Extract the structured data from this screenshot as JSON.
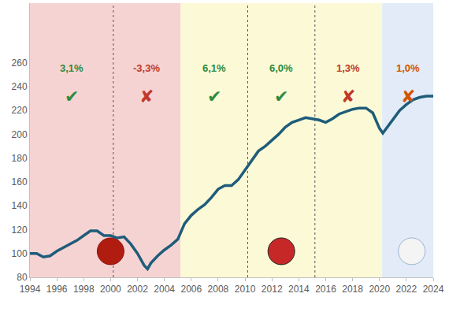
{
  "chart_data": {
    "type": "line",
    "x": [
      1994,
      1994.5,
      1995,
      1995.5,
      1996,
      1996.5,
      1997,
      1997.5,
      1998,
      1998.5,
      1999,
      1999.5,
      2000,
      2000.5,
      2001,
      2001.5,
      2002,
      2002.5,
      2002.75,
      2003,
      2003.5,
      2004,
      2004.5,
      2005,
      2005.5,
      2006,
      2006.5,
      2007,
      2007.5,
      2008,
      2008.5,
      2009,
      2009.5,
      2010,
      2010.5,
      2011,
      2011.5,
      2012,
      2012.5,
      2013,
      2013.5,
      2014,
      2014.5,
      2015,
      2015.5,
      2016,
      2016.5,
      2017,
      2017.5,
      2018,
      2018.5,
      2019,
      2019.5,
      2020,
      2020.25,
      2020.5,
      2021,
      2021.5,
      2022,
      2022.5,
      2023,
      2023.5,
      2024
    ],
    "values": [
      100,
      100,
      97,
      98,
      102,
      105,
      108,
      111,
      115,
      119,
      119,
      115,
      115,
      113,
      114,
      108,
      100,
      90,
      87,
      92,
      98,
      103,
      107,
      112,
      125,
      132,
      137,
      141,
      147,
      154,
      157,
      157,
      162,
      170,
      178,
      186,
      190,
      195,
      200,
      206,
      210,
      212,
      214,
      213,
      212,
      210,
      213,
      217,
      219,
      221,
      222,
      222,
      218,
      205,
      201,
      205,
      212,
      220,
      225,
      229,
      231,
      232,
      232
    ],
    "color": "#1f5c7a",
    "xlim": [
      1994,
      2024
    ],
    "xticks": [
      1994,
      1996,
      1998,
      2000,
      2002,
      2004,
      2006,
      2008,
      2010,
      2012,
      2014,
      2016,
      2018,
      2020,
      2022,
      2024
    ],
    "ylim": [
      80,
      310
    ],
    "yticks": [
      80,
      100,
      120,
      140,
      160,
      180,
      200,
      220,
      240,
      260
    ],
    "grid": false,
    "terms": [
      {
        "start": 1994,
        "end": 2000.2,
        "color": "#f6d3d3",
        "label": "3,1%",
        "growth": 3.1,
        "verdict": "✔",
        "label_color": "#2e8b3e"
      },
      {
        "start": 2000.2,
        "end": 2005.2,
        "color": "#f6d3d3",
        "label": "-3,3%",
        "growth": -3.3,
        "verdict": "✘",
        "label_color": "#c0392b"
      },
      {
        "start": 2005.2,
        "end": 2010.2,
        "color": "#fcfad6",
        "label": "6,1%",
        "growth": 6.1,
        "verdict": "✔",
        "label_color": "#2e8b3e"
      },
      {
        "start": 2010.2,
        "end": 2015.2,
        "color": "#fcfad6",
        "label": "6,0%",
        "growth": 6.0,
        "verdict": "✔",
        "label_color": "#2e8b3e"
      },
      {
        "start": 2015.2,
        "end": 2020.2,
        "color": "#fcfad6",
        "label": "1,3%",
        "growth": 1.3,
        "verdict": "✘",
        "label_color": "#c0392b"
      },
      {
        "start": 2020.2,
        "end": 2024,
        "color": "#e2ebf7",
        "label": "1,0%",
        "growth": 1.0,
        "verdict": "✘",
        "label_color": "#d35400"
      }
    ]
  }
}
